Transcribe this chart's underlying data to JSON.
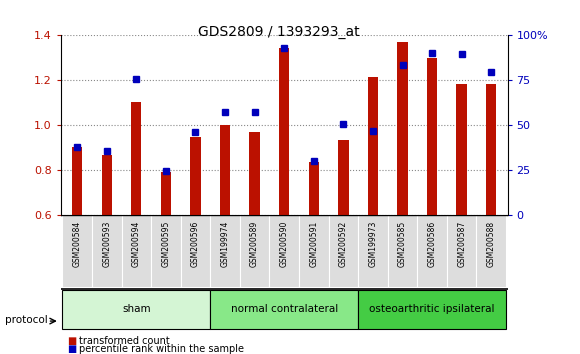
{
  "title": "GDS2809 / 1393293_at",
  "samples": [
    "GSM200584",
    "GSM200593",
    "GSM200594",
    "GSM200595",
    "GSM200596",
    "GSM199974",
    "GSM200589",
    "GSM200590",
    "GSM200591",
    "GSM200592",
    "GSM199973",
    "GSM200585",
    "GSM200586",
    "GSM200587",
    "GSM200588"
  ],
  "red_values": [
    0.905,
    0.868,
    1.105,
    0.793,
    0.948,
    1.0,
    0.97,
    1.345,
    0.835,
    0.935,
    1.213,
    1.37,
    1.3,
    1.185,
    1.185
  ],
  "blue_values": [
    0.906,
    0.886,
    1.205,
    0.795,
    0.97,
    1.06,
    1.058,
    1.345,
    0.843,
    1.005,
    0.975,
    1.268,
    1.32,
    1.318,
    1.238
  ],
  "groups": [
    {
      "label": "sham",
      "start": 0,
      "end": 5,
      "color": "#d4f5d4"
    },
    {
      "label": "normal contralateral",
      "start": 5,
      "end": 10,
      "color": "#88e888"
    },
    {
      "label": "osteoarthritic ipsilateral",
      "start": 10,
      "end": 15,
      "color": "#44cc44"
    }
  ],
  "ylim_left": [
    0.6,
    1.4
  ],
  "ylim_right": [
    0,
    100
  ],
  "yticks_left": [
    0.6,
    0.8,
    1.0,
    1.2,
    1.4
  ],
  "yticks_right": [
    0,
    25,
    50,
    75,
    100
  ],
  "ytick_labels_right": [
    "0",
    "25",
    "50",
    "75",
    "100%"
  ],
  "red_color": "#bb1100",
  "blue_color": "#0000bb",
  "grid_color": "#888888",
  "bg_color": "#ffffff",
  "sample_box_color": "#dddddd",
  "legend_red": "transformed count",
  "legend_blue": "percentile rank within the sample",
  "protocol_label": "protocol",
  "bar_width": 0.35
}
